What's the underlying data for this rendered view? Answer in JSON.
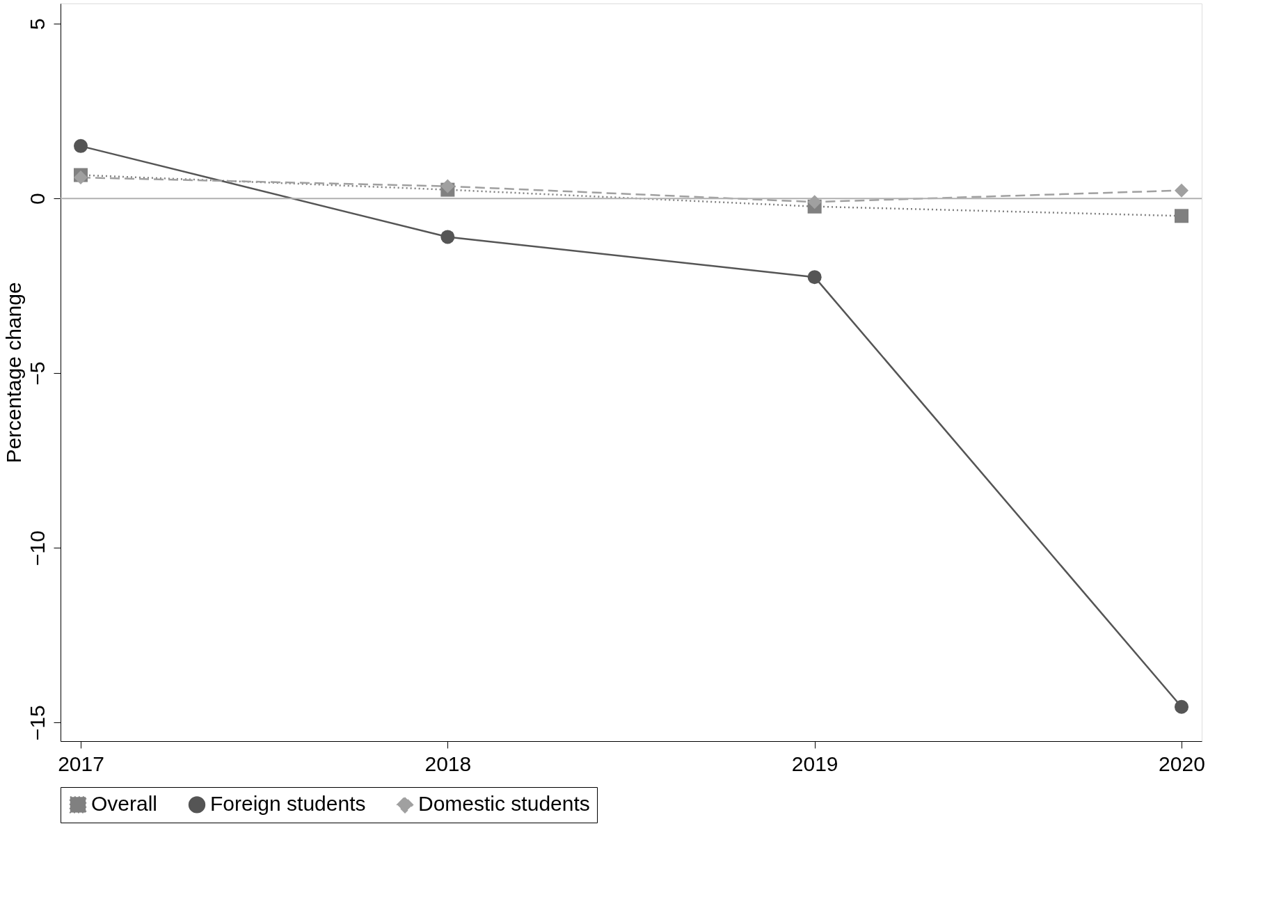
{
  "chart_data": {
    "type": "line",
    "ylabel": "Percentage change",
    "x": [
      2017,
      2018,
      2019,
      2020
    ],
    "series": [
      {
        "name": "Overall",
        "color": "#808080",
        "marker": "square",
        "line_style": "dotted",
        "values": [
          0.67,
          0.25,
          -0.23,
          -0.5
        ]
      },
      {
        "name": "Foreign students",
        "color": "#555555",
        "marker": "circle",
        "line_style": "solid",
        "values": [
          1.5,
          -1.1,
          -2.25,
          -14.55
        ]
      },
      {
        "name": "Domestic students",
        "color": "#a0a0a0",
        "marker": "diamond",
        "line_style": "dashed",
        "values": [
          0.6,
          0.35,
          -0.1,
          0.23
        ]
      }
    ],
    "xlim": [
      2016.945,
      2020.055
    ],
    "xticks": [
      2017,
      2018,
      2019,
      2020
    ],
    "ylim": [
      -15.53,
      5.58
    ],
    "yticks": [
      -15,
      -10,
      -5,
      0,
      5
    ],
    "ref_lines": [
      {
        "axis": "y",
        "value": 0,
        "color": "#b0b0b0"
      }
    ],
    "grid": false,
    "legend": "bottom"
  }
}
